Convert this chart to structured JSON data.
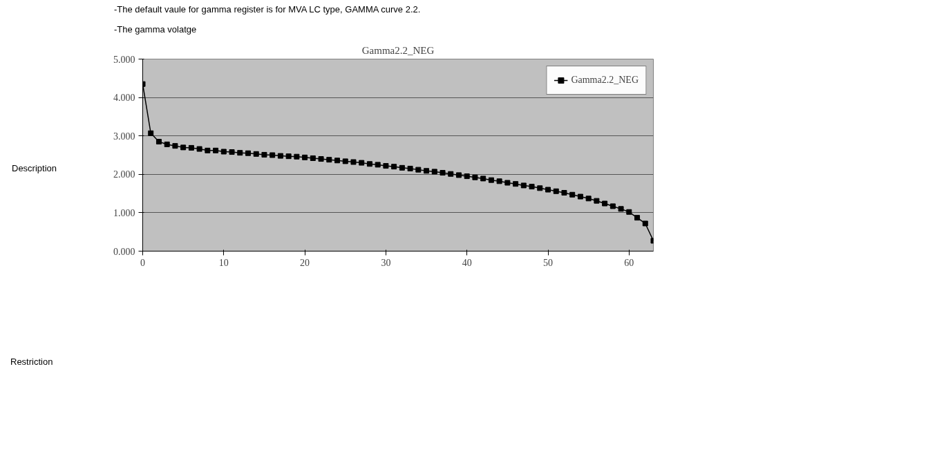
{
  "chart_data": {
    "type": "line",
    "title": "Gamma2.2_NEG",
    "annotations": [
      "Description",
      "-The default vaule for gamma register is for MVA LC type, GAMMA curve 2.2.",
      "-The gamma volatge",
      "Restriction"
    ],
    "x": [
      0,
      1,
      2,
      3,
      4,
      5,
      6,
      7,
      8,
      9,
      10,
      11,
      12,
      13,
      14,
      15,
      16,
      17,
      18,
      19,
      20,
      21,
      22,
      23,
      24,
      25,
      26,
      27,
      28,
      29,
      30,
      31,
      32,
      33,
      34,
      35,
      36,
      37,
      38,
      39,
      40,
      41,
      42,
      43,
      44,
      45,
      46,
      47,
      48,
      49,
      50,
      51,
      52,
      53,
      54,
      55,
      56,
      57,
      58,
      59,
      60,
      61,
      62,
      63
    ],
    "series": [
      {
        "name": "Gamma2.2_NEG",
        "color": "#000000",
        "values": [
          4.35,
          3.07,
          2.85,
          2.78,
          2.74,
          2.7,
          2.69,
          2.66,
          2.62,
          2.62,
          2.59,
          2.58,
          2.56,
          2.55,
          2.53,
          2.51,
          2.5,
          2.48,
          2.47,
          2.46,
          2.44,
          2.42,
          2.4,
          2.38,
          2.36,
          2.34,
          2.32,
          2.3,
          2.27,
          2.25,
          2.22,
          2.2,
          2.17,
          2.15,
          2.12,
          2.09,
          2.07,
          2.04,
          2.01,
          1.98,
          1.95,
          1.92,
          1.89,
          1.85,
          1.82,
          1.78,
          1.75,
          1.71,
          1.68,
          1.64,
          1.6,
          1.56,
          1.52,
          1.47,
          1.42,
          1.37,
          1.31,
          1.24,
          1.17,
          1.1,
          1.02,
          0.87,
          0.72,
          0.27
        ]
      }
    ],
    "xlim": [
      0,
      63
    ],
    "xticks": [
      0,
      10,
      20,
      30,
      40,
      50,
      60
    ],
    "ylim": [
      0,
      5
    ],
    "yticks": [
      {
        "value": 0,
        "label": "0.000"
      },
      {
        "value": 1,
        "label": "1.000"
      },
      {
        "value": 2,
        "label": "2.000"
      },
      {
        "value": 3,
        "label": "3.000"
      },
      {
        "value": 4,
        "label": "4.000"
      },
      {
        "value": 5,
        "label": "5.000"
      }
    ],
    "grid": "y",
    "legend": "top right",
    "marker": "square",
    "line_style": "solid"
  }
}
